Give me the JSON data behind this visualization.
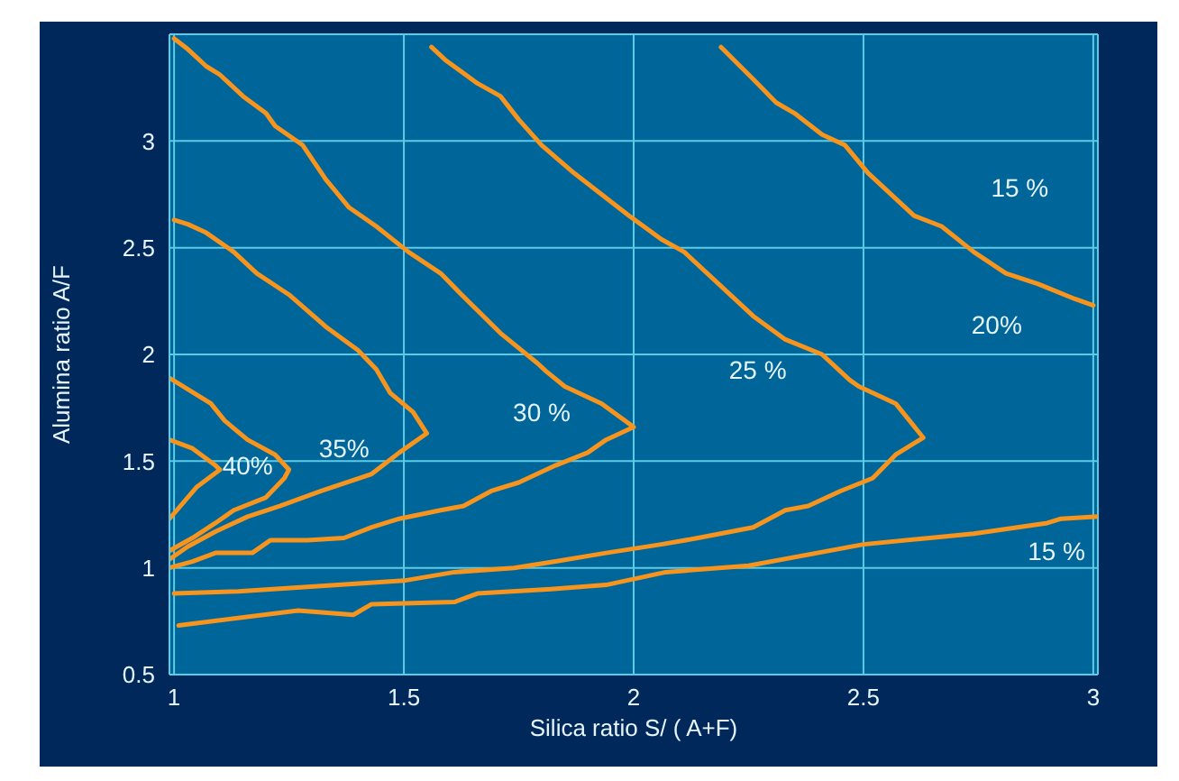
{
  "chart_data": {
    "type": "line",
    "xlabel": "Silica ratio S/ ( A+F)",
    "ylabel": "Alumina ratio A/F",
    "xlim": [
      0.99,
      3.01
    ],
    "ylim": [
      0.5,
      3.5
    ],
    "xticks": [
      1,
      1.5,
      2,
      2.5,
      3
    ],
    "yticks": [
      0.5,
      1,
      1.5,
      2,
      2.5,
      3
    ],
    "grid": true,
    "marker": "none",
    "line_style": "solid",
    "series": [
      {
        "color": "#f7941d",
        "x": [
          0.99,
          1.04,
          1.09,
          1.1,
          1.05,
          0.99
        ],
        "values": [
          1.6,
          1.56,
          1.48,
          1.46,
          1.38,
          1.23
        ]
      },
      {
        "color": "#f7941d",
        "x": [
          0.99,
          1.08,
          1.11,
          1.16,
          1.22,
          1.25,
          1.24,
          1.2,
          1.13,
          1.09,
          1.04,
          0.99
        ],
        "values": [
          1.89,
          1.77,
          1.69,
          1.6,
          1.53,
          1.46,
          1.42,
          1.33,
          1.27,
          1.21,
          1.14,
          1.08
        ]
      },
      {
        "color": "#f7941d",
        "x": [
          1.0,
          1.03,
          1.07,
          1.13,
          1.18,
          1.25,
          1.33,
          1.4,
          1.44,
          1.47,
          1.52,
          1.55,
          1.49,
          1.43,
          1.32,
          1.23,
          1.16,
          1.09,
          1.03,
          0.99
        ],
        "values": [
          2.63,
          2.61,
          2.57,
          2.48,
          2.38,
          2.28,
          2.13,
          2.02,
          1.93,
          1.82,
          1.73,
          1.63,
          1.54,
          1.44,
          1.36,
          1.29,
          1.24,
          1.17,
          1.1,
          1.04
        ]
      },
      {
        "color": "#f7941d",
        "x": [
          1.0,
          1.03,
          1.07,
          1.1,
          1.15,
          1.2,
          1.22,
          1.28,
          1.33,
          1.38,
          1.44,
          1.51,
          1.58,
          1.63,
          1.71,
          1.79,
          1.81,
          1.85,
          1.93,
          2.0,
          1.94,
          1.9,
          1.83,
          1.75,
          1.69,
          1.63,
          1.58,
          1.49,
          1.43,
          1.37,
          1.29,
          1.21,
          1.17,
          1.09,
          1.04,
          0.99
        ],
        "values": [
          3.48,
          3.43,
          3.35,
          3.31,
          3.21,
          3.13,
          3.07,
          2.98,
          2.82,
          2.69,
          2.6,
          2.48,
          2.38,
          2.27,
          2.1,
          1.96,
          1.92,
          1.85,
          1.77,
          1.66,
          1.6,
          1.54,
          1.48,
          1.4,
          1.36,
          1.29,
          1.27,
          1.23,
          1.19,
          1.14,
          1.13,
          1.13,
          1.07,
          1.07,
          1.03,
          1.0
        ]
      },
      {
        "color": "#f7941d",
        "x": [
          1.56,
          1.59,
          1.66,
          1.71,
          1.75,
          1.8,
          1.87,
          1.99,
          2.06,
          2.11,
          2.26,
          2.33,
          2.41,
          2.47,
          2.49,
          2.57,
          2.63,
          2.57,
          2.52,
          2.45,
          2.38,
          2.33,
          2.26,
          2.14,
          2.06,
          1.94,
          1.83,
          1.74,
          1.61,
          1.5,
          1.14,
          1.0
        ],
        "values": [
          3.44,
          3.38,
          3.27,
          3.21,
          3.1,
          2.98,
          2.85,
          2.65,
          2.54,
          2.48,
          2.18,
          2.07,
          2.0,
          1.88,
          1.85,
          1.77,
          1.61,
          1.53,
          1.42,
          1.36,
          1.29,
          1.27,
          1.19,
          1.14,
          1.11,
          1.07,
          1.03,
          1.0,
          0.98,
          0.94,
          0.89,
          0.88
        ]
      },
      {
        "color": "#f7941d",
        "x": [
          2.19,
          2.26,
          2.31,
          2.35,
          2.41,
          2.46,
          2.51,
          2.61,
          2.67,
          2.74,
          2.81,
          2.88,
          2.96,
          3.0
        ],
        "values": [
          3.44,
          3.29,
          3.18,
          3.13,
          3.03,
          2.98,
          2.85,
          2.65,
          2.6,
          2.48,
          2.38,
          2.33,
          2.26,
          2.23
        ]
      },
      {
        "color": "#f7941d",
        "x": [
          1.01,
          1.27,
          1.39,
          1.43,
          1.61,
          1.66,
          1.82,
          1.94,
          2.07,
          2.25,
          2.5,
          2.74,
          2.9,
          2.93,
          3.01
        ],
        "values": [
          0.73,
          0.8,
          0.78,
          0.83,
          0.84,
          0.88,
          0.9,
          0.92,
          0.98,
          1.01,
          1.11,
          1.16,
          1.21,
          1.23,
          1.24
        ]
      }
    ],
    "annotations": [
      "40%",
      "35%",
      "30 %",
      "25 %",
      "20%",
      "15 %",
      "15 %"
    ]
  }
}
